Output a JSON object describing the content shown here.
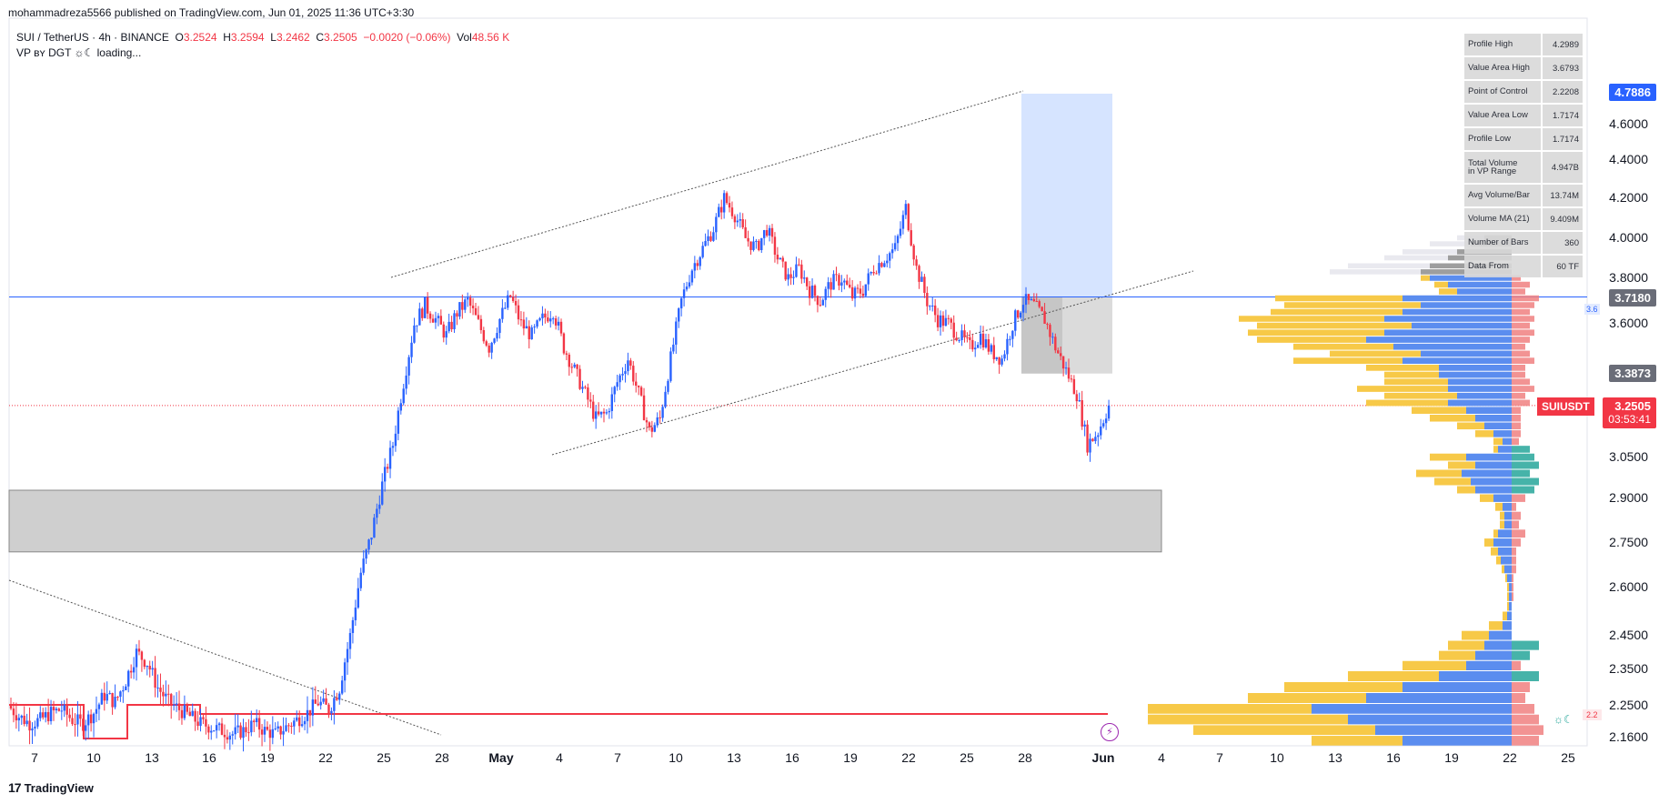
{
  "header": {
    "publisher": "mohammadreza5566 published on TradingView.com, Jun 01, 2025 11:36 UTC+3:30",
    "symbol": "SUI / TetherUS · 4h · BINANCE",
    "open_label": "O",
    "open": "3.2524",
    "high_label": "H",
    "high": "3.2594",
    "low_label": "L",
    "low": "3.2462",
    "close_label": "C",
    "close": "3.2505",
    "change": "−0.0020 (−0.06%)",
    "vol_label": "Vol",
    "vol": "48.56 K",
    "indicator": "VP ʙʏ DGT ☼☾ loading..."
  },
  "stats_table": [
    {
      "label": "Profile High",
      "value": "4.2989"
    },
    {
      "label": "Value Area High",
      "value": "3.6793"
    },
    {
      "label": "Point of Control",
      "value": "2.2208"
    },
    {
      "label": "Value Area Low",
      "value": "1.7174"
    },
    {
      "label": "Profile Low",
      "value": "1.7174"
    },
    {
      "label": "Total Volume\nin VP Range",
      "value": "4.947B"
    },
    {
      "label": "Avg Volume/Bar",
      "value": "13.74M"
    },
    {
      "label": "Volume MA (21)",
      "value": "9.409M"
    },
    {
      "label": "Number of Bars",
      "value": "360"
    },
    {
      "label": "Data From",
      "value": "60 TF"
    }
  ],
  "price_tags": {
    "high": "4.7886",
    "vah": "3.7180",
    "val": "3.3873",
    "last_symbol": "SUIUSDT",
    "last_price": "3.2505",
    "countdown": "03:53:41",
    "vp_small": "3.6",
    "vp_small2": "2.2"
  },
  "branding": "TradingView",
  "colors": {
    "up": "#2962ff",
    "down": "#f23645",
    "vp_up": "#5b8def",
    "vp_down": "#f7c948",
    "vp_teal": "#26a69a",
    "box_gray": "#cfcfcf",
    "box_blue": "#d2e1ff"
  },
  "chart_data": {
    "type": "candlestick",
    "ylim": [
      2.13,
      5.2
    ],
    "y_ticks": [
      "2.1600",
      "2.2500",
      "2.3500",
      "2.4500",
      "2.6000",
      "2.7500",
      "2.9000",
      "3.0500",
      "3.6000",
      "3.8000",
      "4.0000",
      "4.2000",
      "4.4000",
      "4.6000"
    ],
    "x_ticks": [
      "7",
      "10",
      "13",
      "16",
      "19",
      "22",
      "25",
      "28",
      "May",
      "4",
      "7",
      "10",
      "13",
      "16",
      "19",
      "22",
      "25",
      "28",
      "Jun",
      "4",
      "7",
      "10",
      "13",
      "16",
      "19",
      "22",
      "25"
    ],
    "horizontal_lines": [
      {
        "price": 3.718,
        "color": "#2962ff"
      },
      {
        "price": 2.2208,
        "color": "#f23645"
      }
    ],
    "last_price_line": 3.2505,
    "support_zone": [
      2.72,
      2.93
    ],
    "position_box": {
      "entry": 3.718,
      "target": 4.7886,
      "stop": 3.3873
    },
    "close_path": [
      2.25,
      2.22,
      2.2,
      2.21,
      2.23,
      2.24,
      2.21,
      2.2,
      2.23,
      2.28,
      2.26,
      2.32,
      2.4,
      2.37,
      2.3,
      2.26,
      2.24,
      2.22,
      2.2,
      2.19,
      2.18,
      2.17,
      2.18,
      2.2,
      2.18,
      2.17,
      2.19,
      2.21,
      2.23,
      2.26,
      2.24,
      2.3,
      2.45,
      2.65,
      2.78,
      2.95,
      3.1,
      3.35,
      3.6,
      3.68,
      3.62,
      3.55,
      3.65,
      3.7,
      3.6,
      3.5,
      3.62,
      3.72,
      3.6,
      3.55,
      3.62,
      3.66,
      3.5,
      3.4,
      3.3,
      3.2,
      3.22,
      3.35,
      3.45,
      3.3,
      3.15,
      3.2,
      3.45,
      3.7,
      3.85,
      3.95,
      4.05,
      4.2,
      4.12,
      4.0,
      3.95,
      4.05,
      3.9,
      3.8,
      3.85,
      3.75,
      3.7,
      3.78,
      3.8,
      3.72,
      3.75,
      3.85,
      3.9,
      3.95,
      4.15,
      3.85,
      3.7,
      3.62,
      3.6,
      3.55,
      3.5,
      3.55,
      3.48,
      3.45,
      3.6,
      3.7,
      3.68,
      3.62,
      3.5,
      3.4,
      3.3,
      3.1,
      3.15,
      3.25
    ]
  }
}
